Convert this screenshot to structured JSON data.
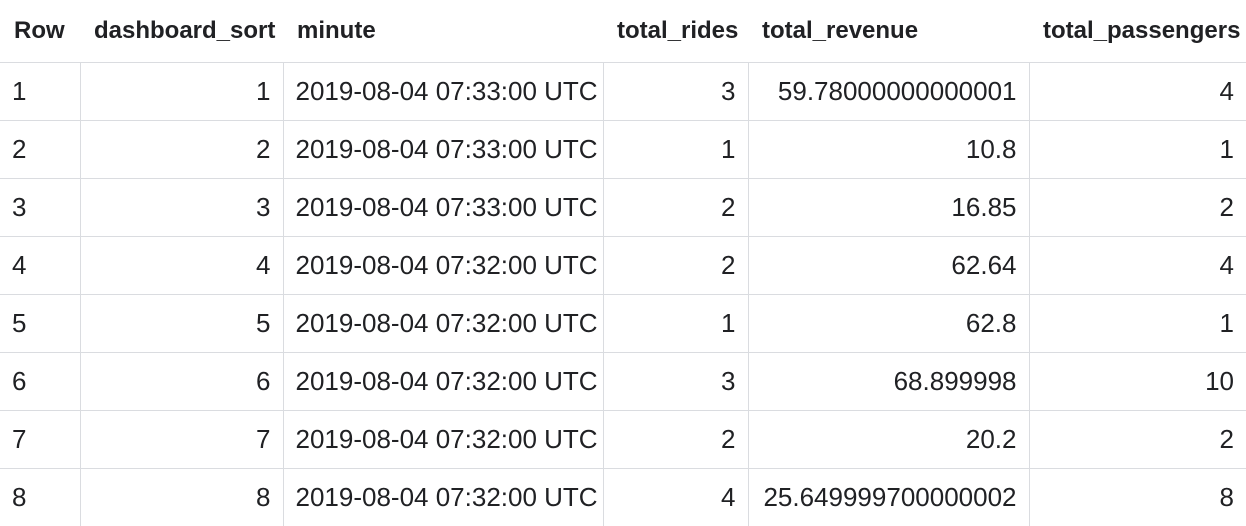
{
  "table": {
    "columns": [
      "Row",
      "dashboard_sort",
      "minute",
      "total_rides",
      "total_revenue",
      "total_passengers"
    ],
    "rows": [
      [
        "1",
        "1",
        "2019-08-04 07:33:00 UTC",
        "3",
        "59.78000000000001",
        "4"
      ],
      [
        "2",
        "2",
        "2019-08-04 07:33:00 UTC",
        "1",
        "10.8",
        "1"
      ],
      [
        "3",
        "3",
        "2019-08-04 07:33:00 UTC",
        "2",
        "16.85",
        "2"
      ],
      [
        "4",
        "4",
        "2019-08-04 07:32:00 UTC",
        "2",
        "62.64",
        "4"
      ],
      [
        "5",
        "5",
        "2019-08-04 07:32:00 UTC",
        "1",
        "62.8",
        "1"
      ],
      [
        "6",
        "6",
        "2019-08-04 07:32:00 UTC",
        "3",
        "68.899998",
        "10"
      ],
      [
        "7",
        "7",
        "2019-08-04 07:32:00 UTC",
        "2",
        "20.2",
        "2"
      ],
      [
        "8",
        "8",
        "2019-08-04 07:32:00 UTC",
        "4",
        "25.649999700000002",
        "8"
      ]
    ]
  }
}
